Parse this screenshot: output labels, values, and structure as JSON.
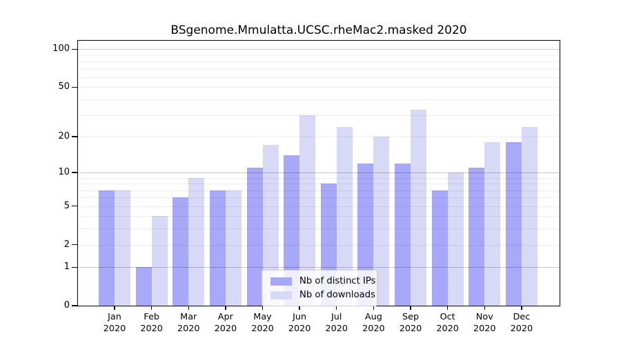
{
  "title": "BSgenome.Mmulatta.UCSC.rheMac2.masked 2020",
  "chart_data": {
    "type": "bar",
    "title": "BSgenome.Mmulatta.UCSC.rheMac2.masked 2020",
    "categories": [
      "Jan",
      "Feb",
      "Mar",
      "Apr",
      "May",
      "Jun",
      "Jul",
      "Aug",
      "Sep",
      "Oct",
      "Nov",
      "Dec"
    ],
    "year": "2020",
    "series": [
      {
        "name": "Nb of distinct IPs",
        "color": "#a8a8f8",
        "values": [
          7,
          1,
          6,
          7,
          11,
          14,
          8,
          12,
          12,
          7,
          11,
          18
        ]
      },
      {
        "name": "Nb of downloads",
        "color": "#d8d8f7",
        "values": [
          7,
          4,
          9,
          7,
          17,
          30,
          24,
          20,
          33,
          10,
          18,
          24
        ]
      }
    ],
    "xlabel": "",
    "ylabel": "",
    "yscale": "log1p",
    "yticks": [
      0,
      1,
      2,
      5,
      10,
      20,
      50,
      100
    ],
    "gridlines": {
      "minor": [
        2,
        3,
        4,
        5,
        6,
        7,
        8,
        9,
        20,
        30,
        40,
        50,
        60,
        70,
        80,
        90
      ],
      "major": [
        1,
        10,
        100
      ]
    },
    "ylim": [
      0,
      117
    ],
    "grid": true,
    "legend_position": "lower center"
  }
}
